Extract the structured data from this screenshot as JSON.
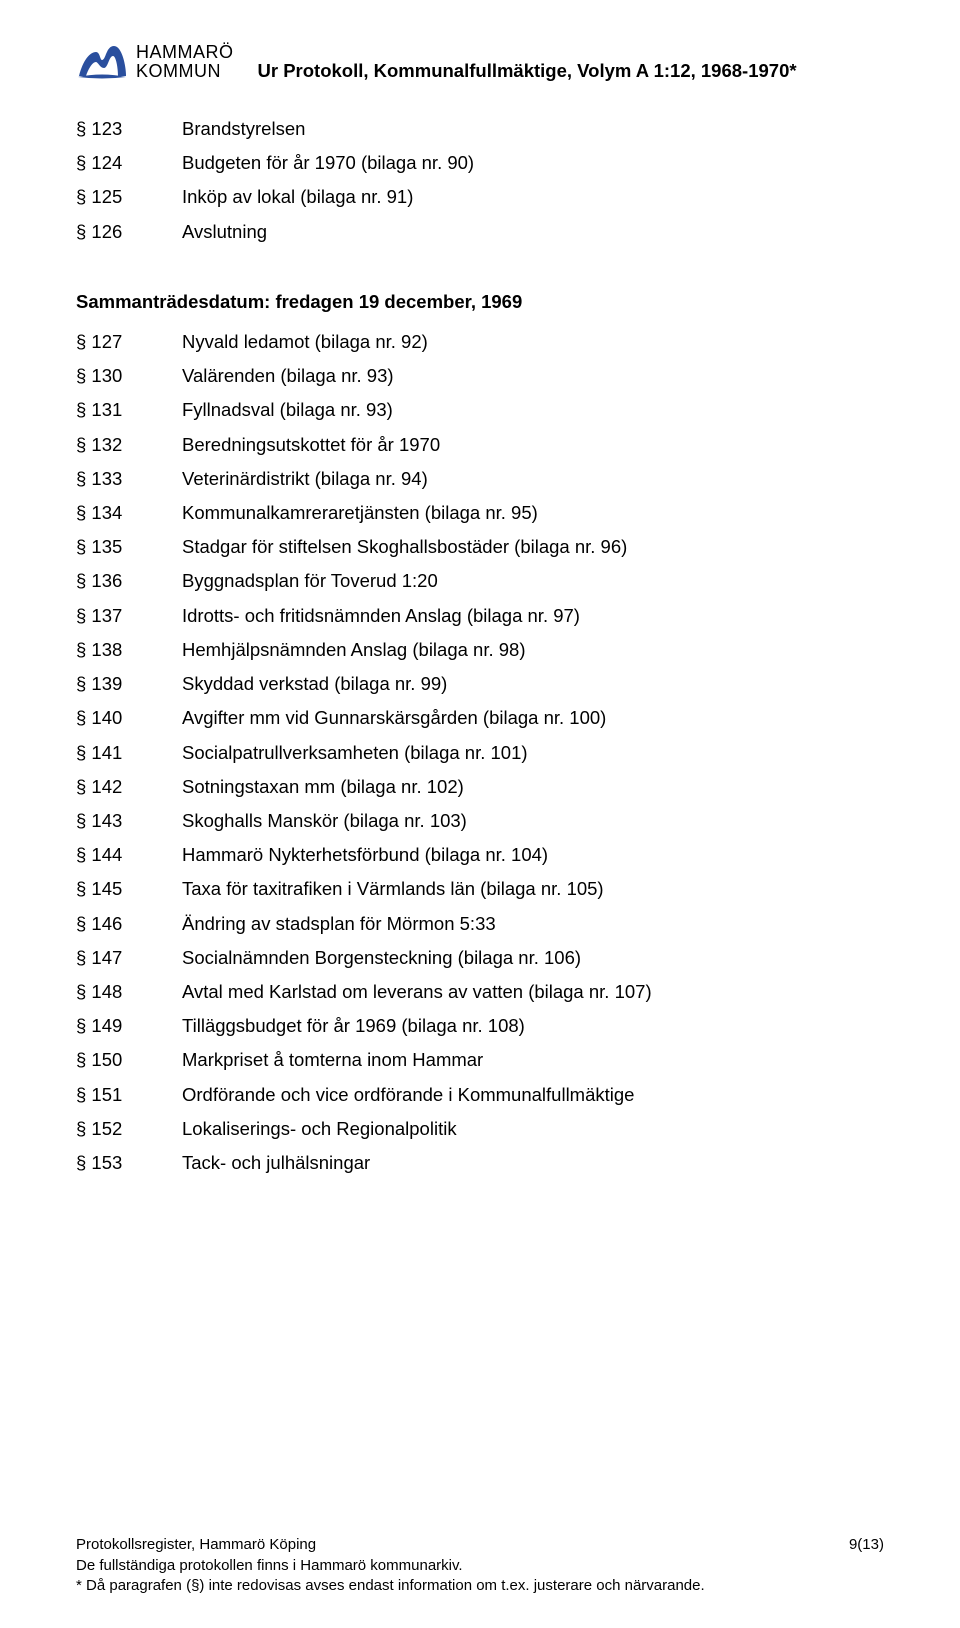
{
  "colors": {
    "logo_blue": "#2a4f9e",
    "text": "#000000",
    "background": "#ffffff"
  },
  "typography": {
    "body_font": "Arial",
    "body_size_pt": 14,
    "title_weight": "bold",
    "heading_weight": "bold"
  },
  "logo": {
    "line1": "HAMMARÖ",
    "line2": "KOMMUN"
  },
  "doc_title": "Ur Protokoll, Kommunalfullmäktige, Volym A 1:12, 1968-1970*",
  "pre_items": [
    {
      "sec": "§ 123",
      "text": "Brandstyrelsen"
    },
    {
      "sec": "§ 124",
      "text": "Budgeten för år 1970 (bilaga nr. 90)"
    },
    {
      "sec": "§ 125",
      "text": "Inköp av lokal (bilaga nr. 91)"
    },
    {
      "sec": "§ 126",
      "text": "Avslutning"
    }
  ],
  "heading": "Sammanträdesdatum: fredagen 19 december, 1969",
  "items": [
    {
      "sec": "§ 127",
      "text": "Nyvald ledamot (bilaga nr. 92)"
    },
    {
      "sec": "§ 130",
      "text": "Valärenden (bilaga nr. 93)"
    },
    {
      "sec": "§ 131",
      "text": "Fyllnadsval (bilaga nr. 93)"
    },
    {
      "sec": "§ 132",
      "text": "Beredningsutskottet för år 1970"
    },
    {
      "sec": "§ 133",
      "text": "Veterinärdistrikt (bilaga nr. 94)"
    },
    {
      "sec": "§ 134",
      "text": "Kommunalkamreraretjänsten (bilaga nr. 95)"
    },
    {
      "sec": "§ 135",
      "text": "Stadgar för stiftelsen Skoghallsbostäder (bilaga nr. 96)"
    },
    {
      "sec": "§ 136",
      "text": "Byggnadsplan för Toverud 1:20"
    },
    {
      "sec": "§ 137",
      "text": "Idrotts- och fritidsnämnden Anslag (bilaga nr. 97)"
    },
    {
      "sec": "§ 138",
      "text": "Hemhjälpsnämnden Anslag (bilaga nr. 98)"
    },
    {
      "sec": "§ 139",
      "text": "Skyddad verkstad (bilaga nr. 99)"
    },
    {
      "sec": "§ 140",
      "text": "Avgifter mm vid Gunnarskärsgården (bilaga nr. 100)"
    },
    {
      "sec": "§ 141",
      "text": " Socialpatrullverksamheten (bilaga nr. 101)"
    },
    {
      "sec": "§ 142",
      "text": "Sotningstaxan mm (bilaga nr. 102)"
    },
    {
      "sec": "§ 143",
      "text": "Skoghalls Manskör (bilaga nr. 103)"
    },
    {
      "sec": "§ 144",
      "text": "Hammarö Nykterhetsförbund (bilaga nr. 104)"
    },
    {
      "sec": "§ 145",
      "text": "Taxa för taxitrafiken i Värmlands län (bilaga nr. 105)"
    },
    {
      "sec": "§ 146",
      "text": "Ändring av stadsplan för Mörmon 5:33"
    },
    {
      "sec": "§ 147",
      "text": "Socialnämnden Borgensteckning (bilaga nr. 106)"
    },
    {
      "sec": "§ 148",
      "text": "Avtal med Karlstad om leverans av vatten (bilaga nr. 107)"
    },
    {
      "sec": "§ 149",
      "text": "Tilläggsbudget för år 1969 (bilaga nr. 108)"
    },
    {
      "sec": "§ 150",
      "text": "Markpriset å tomterna inom Hammar"
    },
    {
      "sec": "§ 151",
      "text": "Ordförande och vice ordförande i Kommunalfullmäktige"
    },
    {
      "sec": "§ 152",
      "text": "Lokaliserings- och Regionalpolitik"
    },
    {
      "sec": "§ 153",
      "text": "Tack- och julhälsningar"
    }
  ],
  "footer": {
    "line1": "Protokollsregister, Hammarö Köping",
    "line2": "De fullständiga protokollen finns i Hammarö kommunarkiv.",
    "line3": "* Då paragrafen (§) inte redovisas avses endast information om t.ex. justerare och närvarande.",
    "page": "9(13)"
  }
}
